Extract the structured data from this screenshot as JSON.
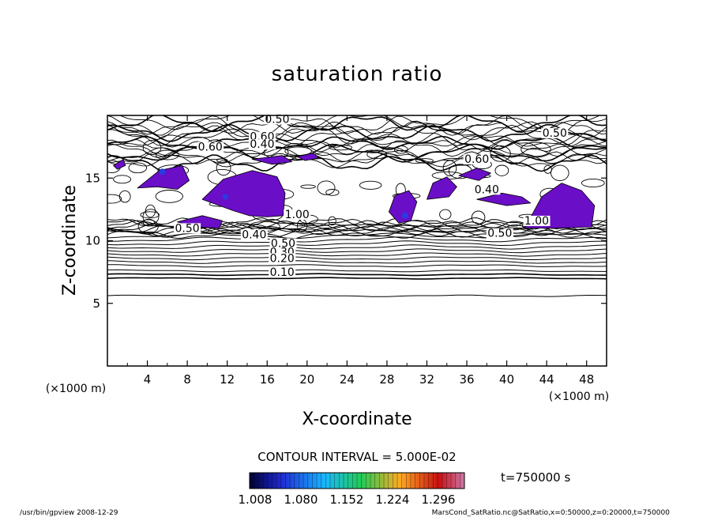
{
  "chart_data": {
    "type": "contour",
    "title": "saturation ratio",
    "xlabel": "X-coordinate",
    "ylabel": "Z-coordinate",
    "x_unit": "(×1000 m)",
    "z_unit": "(×1000 m)",
    "xlim": [
      0,
      50
    ],
    "zlim": [
      0,
      20
    ],
    "x_ticks": [
      4,
      8,
      12,
      16,
      20,
      24,
      28,
      32,
      36,
      40,
      44,
      48
    ],
    "z_ticks": [
      5,
      10,
      15
    ],
    "contour_interval_text": "CONTOUR INTERVAL = 5.000E-02",
    "contour_labels": [
      {
        "text": "0.50",
        "x": 17.0,
        "z": 19.4
      },
      {
        "text": "0.60",
        "x": 15.5,
        "z": 18.0
      },
      {
        "text": "0.40",
        "x": 15.5,
        "z": 17.4
      },
      {
        "text": "0.60",
        "x": 10.3,
        "z": 17.2
      },
      {
        "text": "0.50",
        "x": 44.8,
        "z": 18.3
      },
      {
        "text": "0.60",
        "x": 37.0,
        "z": 16.2
      },
      {
        "text": "0.40",
        "x": 38.0,
        "z": 13.8
      },
      {
        "text": "1.00",
        "x": 19.0,
        "z": 11.8
      },
      {
        "text": "1.00",
        "x": 43.0,
        "z": 11.3
      },
      {
        "text": "0.50",
        "x": 8.0,
        "z": 10.7
      },
      {
        "text": "0.40",
        "x": 14.7,
        "z": 10.2
      },
      {
        "text": "0.50",
        "x": 17.6,
        "z": 9.5
      },
      {
        "text": "0.30",
        "x": 17.5,
        "z": 8.8
      },
      {
        "text": "0.20",
        "x": 17.5,
        "z": 8.3
      },
      {
        "text": "0.10",
        "x": 17.5,
        "z": 7.2
      },
      {
        "text": "0.50",
        "x": 39.3,
        "z": 10.3
      }
    ],
    "shaded_regions": [
      {
        "min_value": 1.008,
        "description": "supersaturated zones between z ≈ 11 and 17 (×1000 m)"
      }
    ],
    "colorbar": {
      "labels": [
        "1.008",
        "1.080",
        "1.152",
        "1.224",
        "1.296"
      ],
      "colors": [
        "#000033",
        "#1f2bd6",
        "#19b7ff",
        "#22cc55",
        "#ffaa22",
        "#c81010",
        "#cc77aa"
      ]
    },
    "time_label": "t=750000 s"
  },
  "footer": {
    "left": "/usr/bin/gpview   2008-12-29",
    "right": "MarsCond_SatRatio.nc@SatRatio,x=0:50000,z=0:20000,t=750000"
  },
  "colors": {
    "line": "#000000",
    "fill_purple": "#6a0ec8",
    "fill_blue": "#2a3be0"
  }
}
